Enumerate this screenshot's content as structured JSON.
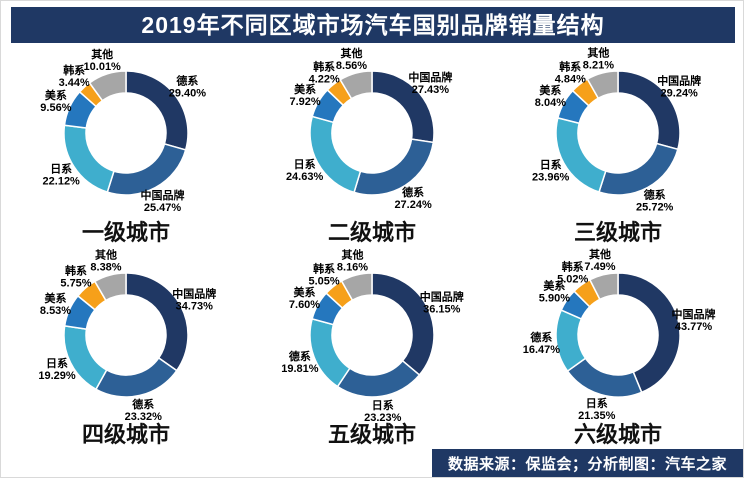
{
  "page": {
    "title": "2019年不同区域市场汽车国别品牌销量结构",
    "footer": "数据来源：保监会；分析制图：汽车之家"
  },
  "colors": {
    "banner_bg": "#1F3864",
    "banner_text": "#FFFFFF",
    "label_text": "#000000"
  },
  "palette": [
    "#203864",
    "#2D6096",
    "#3FAECD",
    "#2577BE",
    "#F6A01A",
    "#A6A6A6"
  ],
  "chart_data": [
    {
      "type": "pie",
      "style": "donut",
      "title": "一级城市",
      "unit": "%",
      "labels": [
        "德系",
        "中国品牌",
        "日系",
        "美系",
        "韩系",
        "其他"
      ],
      "values": [
        29.4,
        25.47,
        22.12,
        9.56,
        3.44,
        10.01
      ]
    },
    {
      "type": "pie",
      "style": "donut",
      "title": "二级城市",
      "unit": "%",
      "labels": [
        "中国品牌",
        "德系",
        "日系",
        "美系",
        "韩系",
        "其他"
      ],
      "values": [
        27.43,
        27.24,
        24.63,
        7.92,
        4.22,
        8.56
      ]
    },
    {
      "type": "pie",
      "style": "donut",
      "title": "三级城市",
      "unit": "%",
      "labels": [
        "中国品牌",
        "德系",
        "日系",
        "美系",
        "韩系",
        "其他"
      ],
      "values": [
        29.24,
        25.72,
        23.96,
        8.04,
        4.84,
        8.21
      ]
    },
    {
      "type": "pie",
      "style": "donut",
      "title": "四级城市",
      "unit": "%",
      "labels": [
        "中国品牌",
        "德系",
        "日系",
        "美系",
        "韩系",
        "其他"
      ],
      "values": [
        34.73,
        23.32,
        19.29,
        8.53,
        5.75,
        8.38
      ]
    },
    {
      "type": "pie",
      "style": "donut",
      "title": "五级城市",
      "unit": "%",
      "labels": [
        "中国品牌",
        "日系",
        "德系",
        "美系",
        "韩系",
        "其他"
      ],
      "values": [
        36.15,
        23.23,
        19.81,
        7.6,
        5.05,
        8.16
      ]
    },
    {
      "type": "pie",
      "style": "donut",
      "title": "六级城市",
      "unit": "%",
      "labels": [
        "中国品牌",
        "日系",
        "德系",
        "美系",
        "韩系",
        "其他"
      ],
      "values": [
        43.77,
        21.35,
        16.47,
        5.9,
        5.02,
        7.49
      ]
    }
  ]
}
